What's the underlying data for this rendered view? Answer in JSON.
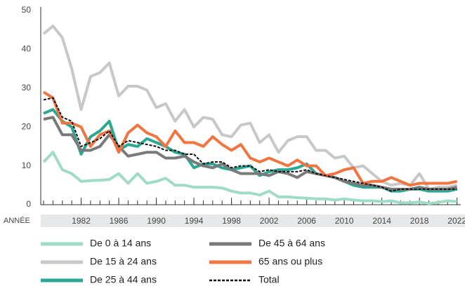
{
  "chart_data": {
    "type": "line",
    "x_label": "ANNÉE",
    "x": [
      1978,
      1979,
      1980,
      1981,
      1982,
      1983,
      1984,
      1985,
      1986,
      1987,
      1988,
      1989,
      1990,
      1991,
      1992,
      1993,
      1994,
      1995,
      1996,
      1997,
      1998,
      1999,
      2000,
      2001,
      2002,
      2003,
      2004,
      2005,
      2006,
      2007,
      2008,
      2009,
      2010,
      2011,
      2012,
      2013,
      2014,
      2015,
      2016,
      2017,
      2018,
      2019,
      2020,
      2021,
      2022
    ],
    "xlim": [
      1977.7,
      2022.4
    ],
    "xticks": [
      1982,
      1986,
      1990,
      1994,
      1998,
      2002,
      2006,
      2010,
      2014,
      2018,
      2022
    ],
    "ylim": [
      0,
      50
    ],
    "yticks": [
      0,
      10,
      20,
      30,
      40,
      50
    ],
    "series": [
      {
        "name": "De 0 à 14 ans",
        "color": "#9fdcc8",
        "values": [
          11,
          13.5,
          9,
          8,
          6,
          6.2,
          6.3,
          6.5,
          8,
          5.5,
          8,
          5.5,
          6,
          6.8,
          5,
          5,
          4.5,
          4.5,
          4.5,
          4.3,
          3.5,
          3,
          3,
          2.5,
          3.5,
          2,
          2,
          1.8,
          1.7,
          1.5,
          1.5,
          1.2,
          1.5,
          1.2,
          1,
          1,
          0.8,
          1,
          0.5,
          0.5,
          0.7,
          0.3,
          0.6,
          1,
          0.8
        ]
      },
      {
        "name": "De 15 à 24 ans",
        "color": "#c8c8c8",
        "values": [
          44,
          46,
          43,
          35,
          24.5,
          33,
          34,
          36.5,
          28,
          30.5,
          30.5,
          29.5,
          25,
          26,
          21.5,
          24.5,
          20,
          22.5,
          22,
          18,
          17.5,
          20.5,
          21,
          16,
          18,
          13.5,
          16.5,
          17.5,
          17.5,
          14,
          14,
          12,
          12.5,
          9.5,
          10,
          8,
          6,
          5,
          5.5,
          5,
          8,
          4,
          4.5,
          4.5,
          5
        ]
      },
      {
        "name": "De 25 à 44 ans",
        "color": "#2aa892",
        "values": [
          23.5,
          24.5,
          21.5,
          20,
          13,
          17.5,
          19,
          21.5,
          14,
          15.5,
          15,
          17,
          16,
          15,
          13.5,
          13,
          9.5,
          10.5,
          10.5,
          9.5,
          9,
          9.5,
          10,
          7.5,
          8.5,
          9,
          9,
          9.5,
          10.5,
          8,
          7.5,
          7,
          6,
          5,
          4.5,
          4.5,
          4.5,
          3.5,
          3.5,
          4,
          4,
          3.5,
          3.5,
          3.5,
          4
        ]
      },
      {
        "name": "De 45 à 64 ans",
        "color": "#7a7a7a",
        "values": [
          22,
          22.5,
          18,
          18,
          14,
          14,
          15,
          18,
          15,
          12.5,
          13,
          13.5,
          13.5,
          12,
          12,
          12.5,
          11,
          10,
          9.5,
          10.5,
          9,
          8,
          8,
          8,
          7.5,
          8.5,
          8,
          7,
          8.5,
          8,
          7.5,
          7,
          6,
          5.5,
          5,
          5,
          4.5,
          4,
          4,
          4,
          4.5,
          4,
          4,
          4,
          4.5
        ]
      },
      {
        "name": "65 ans ou plus",
        "color": "#f07540",
        "values": [
          29,
          27.5,
          21,
          21,
          20,
          15,
          18,
          19,
          13.5,
          18.5,
          20.5,
          18.5,
          17.5,
          15,
          19,
          16,
          16,
          15,
          17.5,
          15.5,
          14,
          15.5,
          12,
          11,
          12,
          11,
          10,
          11.5,
          10,
          10,
          7.5,
          8,
          9,
          9.5,
          5.5,
          6,
          6,
          7,
          6,
          5,
          5.5,
          5.5,
          5.5,
          5.5,
          6
        ]
      },
      {
        "name": "Total",
        "color": "#111111",
        "dashed": true,
        "values": [
          27,
          27.5,
          22.5,
          21.5,
          15,
          16,
          17,
          19,
          15,
          16.5,
          16,
          15.5,
          15,
          14,
          14,
          13,
          13,
          10.5,
          11,
          11,
          9.5,
          10,
          10,
          8.5,
          9,
          8.5,
          8.5,
          8.5,
          9,
          8,
          7.5,
          7,
          6.5,
          6,
          5.5,
          5,
          4.5,
          3.5,
          4,
          4,
          4,
          4,
          4,
          4,
          4
        ]
      }
    ]
  }
}
